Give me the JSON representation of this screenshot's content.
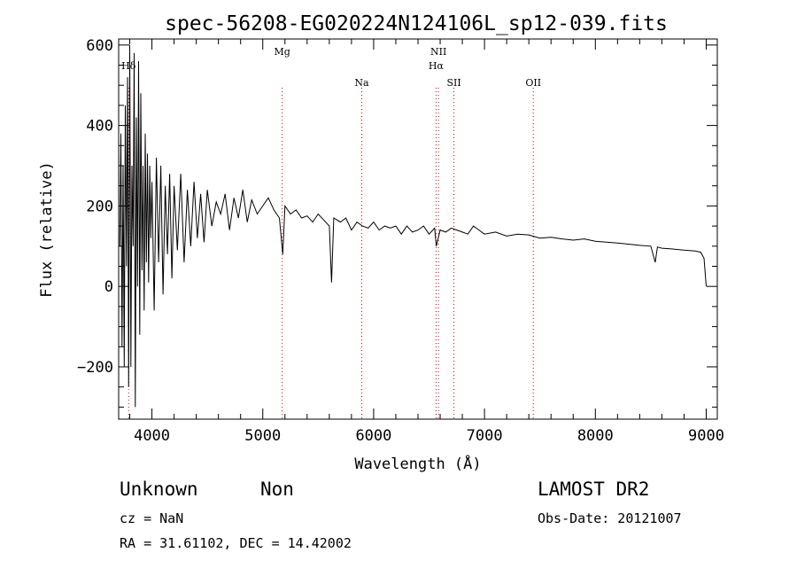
{
  "chart_data": {
    "type": "line",
    "title": "spec-56208-EG020224N124106L_sp12-039.fits",
    "xlabel": "Wavelength (Å)",
    "ylabel": "Flux (relative)",
    "xlim": [
      3700,
      9100
    ],
    "ylim": [
      -330,
      615
    ],
    "x_ticks": [
      4000,
      5000,
      6000,
      7000,
      8000,
      9000
    ],
    "x_tick_labels": [
      "4000",
      "5000",
      "6000",
      "7000",
      "8000",
      "9000"
    ],
    "y_ticks": [
      -200,
      0,
      200,
      400,
      600
    ],
    "y_tick_labels": [
      "−200",
      "0",
      "200",
      "400",
      "600"
    ],
    "grid": false,
    "line_color": "#000000",
    "marker_color": "#cc0000",
    "series": [
      {
        "x": [
          3710,
          3720,
          3730,
          3740,
          3750,
          3760,
          3770,
          3780,
          3790,
          3800,
          3810,
          3820,
          3830,
          3840,
          3850,
          3860,
          3870,
          3880,
          3890,
          3900,
          3910,
          3920,
          3930,
          3940,
          3950,
          3960,
          3970,
          3980,
          3990,
          4000,
          4020,
          4040,
          4060,
          4080,
          4100,
          4120,
          4140,
          4160,
          4180,
          4200,
          4230,
          4260,
          4290,
          4320,
          4350,
          4380,
          4410,
          4440,
          4470,
          4500,
          4540,
          4580,
          4620,
          4660,
          4700,
          4740,
          4780,
          4820,
          4860,
          4900,
          4950,
          5000,
          5050,
          5100,
          5150,
          5180,
          5200,
          5250,
          5300,
          5350,
          5400,
          5450,
          5500,
          5550,
          5600,
          5620,
          5640,
          5700,
          5750,
          5800,
          5850,
          5900,
          5950,
          6000,
          6050,
          6100,
          6150,
          6200,
          6250,
          6300,
          6350,
          6400,
          6450,
          6500,
          6550,
          6565,
          6600,
          6650,
          6700,
          6750,
          6800,
          6850,
          6900,
          6950,
          7000,
          7100,
          7200,
          7300,
          7400,
          7500,
          7600,
          7700,
          7800,
          7900,
          8000,
          8100,
          8200,
          8300,
          8400,
          8500,
          8540,
          8560,
          8600,
          8700,
          8800,
          8900,
          8950,
          8980,
          9000
        ],
        "y": [
          100,
          380,
          -150,
          300,
          -200,
          450,
          50,
          520,
          -250,
          600,
          -200,
          300,
          100,
          580,
          -300,
          420,
          0,
          560,
          -120,
          480,
          40,
          300,
          -60,
          380,
          60,
          330,
          10,
          300,
          120,
          260,
          -60,
          320,
          60,
          300,
          -20,
          250,
          80,
          280,
          20,
          250,
          90,
          280,
          60,
          240,
          100,
          260,
          120,
          230,
          110,
          240,
          150,
          210,
          180,
          230,
          140,
          220,
          170,
          240,
          160,
          215,
          180,
          200,
          220,
          190,
          170,
          80,
          200,
          180,
          190,
          170,
          175,
          160,
          180,
          165,
          150,
          10,
          170,
          160,
          170,
          140,
          160,
          150,
          145,
          160,
          140,
          150,
          145,
          150,
          130,
          150,
          135,
          140,
          150,
          130,
          145,
          100,
          140,
          135,
          145,
          140,
          135,
          130,
          150,
          140,
          130,
          135,
          125,
          130,
          128,
          120,
          122,
          118,
          115,
          118,
          112,
          110,
          108,
          105,
          102,
          100,
          60,
          98,
          95,
          93,
          90,
          88,
          85,
          70,
          0
        ]
      }
    ],
    "markers": [
      {
        "label": "Hδ",
        "x": 3790,
        "label_row": 1
      },
      {
        "label": "Mg",
        "x": 5175,
        "label_row": 0
      },
      {
        "label": "Na",
        "x": 5893,
        "label_row": 2
      },
      {
        "label": "NII",
        "x": 6585,
        "label_row": 0
      },
      {
        "label": "Hα",
        "x": 6563,
        "label_row": 1
      },
      {
        "label": "SII",
        "x": 6724,
        "label_row": 2
      },
      {
        "label": "OII",
        "x": 7440,
        "label_row": 2
      }
    ]
  },
  "info": {
    "class": "Unknown",
    "subclass": "Non",
    "cz": "cz = NaN",
    "radec": "RA =  31.61102, DEC =  14.42002",
    "survey": "LAMOST DR2",
    "obsdate": "Obs-Date: 20121007"
  }
}
